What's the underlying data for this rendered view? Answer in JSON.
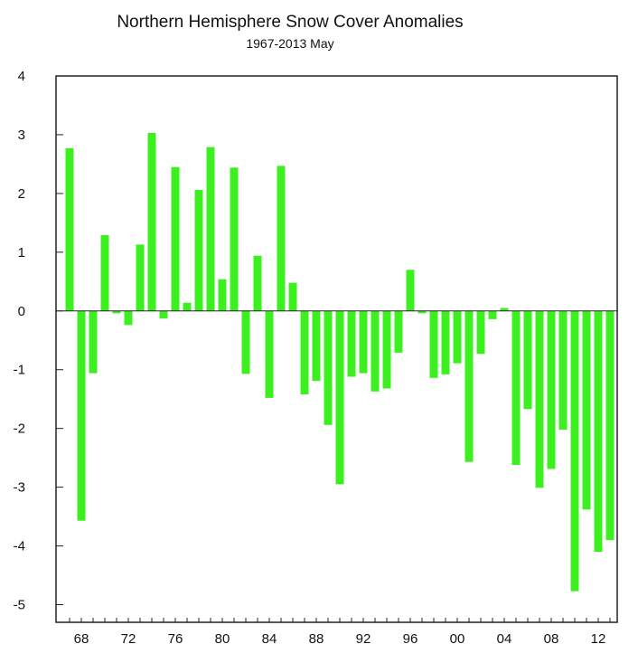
{
  "chart_data": {
    "type": "bar",
    "title": "Northern Hemisphere Snow Cover Anomalies",
    "subtitle": "1967-2013 May",
    "xlabel": "",
    "ylabel": "",
    "ylim": [
      -5.3,
      4.0
    ],
    "yticks": [
      4,
      3,
      2,
      1,
      0,
      -1,
      -2,
      -3,
      -4,
      -5
    ],
    "xlim": [
      1966.0,
      1969.0
    ],
    "xticks": [
      {
        "year": 1968,
        "label": "68"
      },
      {
        "year": 1972,
        "label": "72"
      },
      {
        "year": 1976,
        "label": "76"
      },
      {
        "year": 1980,
        "label": "80"
      },
      {
        "year": 1984,
        "label": "84"
      },
      {
        "year": 1988,
        "label": "88"
      },
      {
        "year": 1992,
        "label": "92"
      },
      {
        "year": 1996,
        "label": "96"
      },
      {
        "year": 2000,
        "label": "00"
      },
      {
        "year": 2004,
        "label": "04"
      },
      {
        "year": 2008,
        "label": "08"
      },
      {
        "year": 2012,
        "label": "12"
      }
    ],
    "bar_color": "#3cf020",
    "grid": false,
    "categories": [
      1967,
      1968,
      1969,
      1970,
      1971,
      1972,
      1973,
      1974,
      1975,
      1976,
      1977,
      1978,
      1979,
      1980,
      1981,
      1982,
      1983,
      1984,
      1985,
      1986,
      1987,
      1988,
      1989,
      1990,
      1991,
      1992,
      1993,
      1994,
      1995,
      1996,
      1997,
      1998,
      1999,
      2000,
      2001,
      2002,
      2003,
      2004,
      2005,
      2006,
      2007,
      2008,
      2009,
      2010,
      2011,
      2012,
      2013
    ],
    "values": [
      2.77,
      -3.57,
      -1.06,
      1.29,
      -0.04,
      -0.24,
      1.13,
      3.03,
      -0.13,
      2.45,
      0.14,
      2.06,
      2.79,
      0.54,
      2.44,
      -1.07,
      0.94,
      -1.48,
      2.47,
      0.48,
      -1.42,
      -1.19,
      -1.94,
      -2.95,
      -1.12,
      -1.06,
      -1.37,
      -1.32,
      -0.71,
      0.7,
      -0.04,
      -1.14,
      -1.08,
      -0.89,
      -2.57,
      -0.73,
      -0.14,
      0.05,
      -2.62,
      -1.67,
      -3.01,
      -2.69,
      -2.02,
      -4.77,
      -3.38,
      -4.1,
      -3.9
    ]
  }
}
